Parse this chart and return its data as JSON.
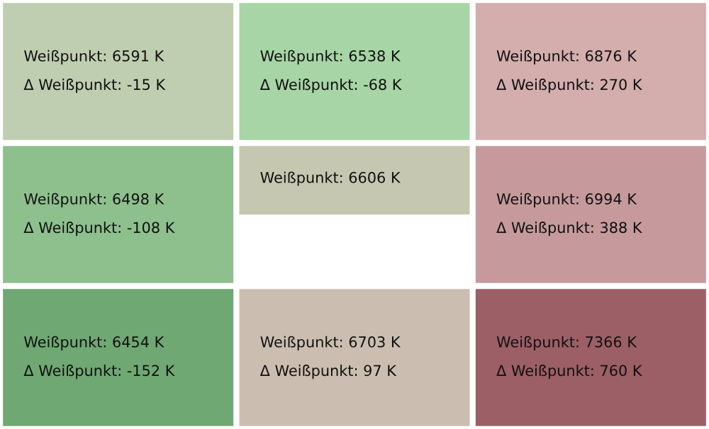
{
  "chart_data": {
    "type": "heatmap",
    "categories": [
      null,
      null,
      null
    ],
    "y_categories": [
      null,
      null,
      null,
      null,
      null,
      null
    ],
    "cells": [
      [
        6591,
        6538,
        6876
      ],
      [
        -15,
        -68,
        270
      ],
      [
        6498,
        6606,
        6994
      ],
      [
        -108,
        null,
        388
      ],
      [
        6454,
        6703,
        7366
      ],
      [
        -152,
        97,
        760
      ]
    ],
    "cell_labels": [
      [
        "Weißpunkt: 6591 K",
        "Weißpunkt: 6538 K",
        "Weißpunkt: 6876 K"
      ],
      [
        "Δ Weißpunkt: -15 K",
        "Δ Weißpunkt: -68 K",
        "Δ Weißpunkt: 270 K"
      ],
      [
        "Weißpunkt: 6498 K",
        "Weißpunkt: 6606 K",
        "Weißpunkt: 6994 K"
      ],
      [
        "Δ Weißpunkt: -108 K",
        null,
        "Δ Weißpunkt: 388 K"
      ],
      [
        "Weißpunkt: 6454 K",
        "Weißpunkt: 6703 K",
        "Weißpunkt: 7366 K"
      ],
      [
        "Δ Weißpunkt: -152 K",
        "Δ Weißpunkt: 97 K",
        "Δ Weißpunkt: 760 K"
      ]
    ]
  }
}
